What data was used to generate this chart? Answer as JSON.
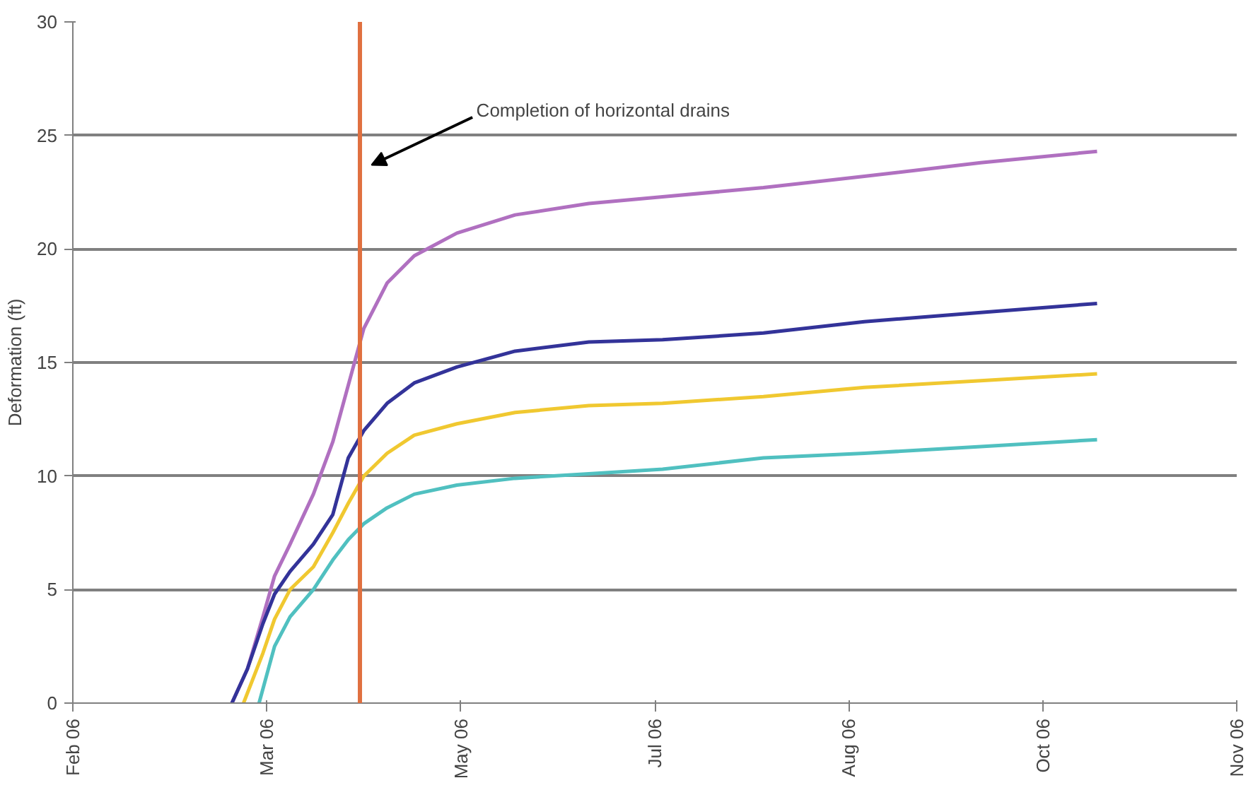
{
  "chart_data": {
    "type": "line",
    "ylabel": "Deformation (ft)",
    "grid": "y",
    "x": [
      "2006-03-14",
      "2006-03-18",
      "2006-03-22",
      "2006-03-25",
      "2006-03-29",
      "2006-04-04",
      "2006-04-09",
      "2006-04-13",
      "2006-04-17",
      "2006-04-23",
      "2006-04-30",
      "2006-05-11",
      "2006-05-26",
      "2006-06-14",
      "2006-07-03",
      "2006-07-29",
      "2006-08-24",
      "2006-09-23",
      "2006-10-23"
    ],
    "series": [
      {
        "color": "#b070c0",
        "values": [
          0,
          1.5,
          3.8,
          5.6,
          7.0,
          9.2,
          11.5,
          14.0,
          16.5,
          18.5,
          19.7,
          20.7,
          21.5,
          22.0,
          22.3,
          22.7,
          23.2,
          23.8,
          24.3
        ]
      },
      {
        "color": "#333399",
        "values": [
          0,
          1.5,
          3.5,
          4.8,
          5.8,
          7.0,
          8.3,
          10.8,
          12.0,
          13.2,
          14.1,
          14.8,
          15.5,
          15.9,
          16.0,
          16.3,
          16.8,
          17.2,
          17.6
        ]
      },
      {
        "color": "#f0c830",
        "x": [
          "2006-03-17",
          "2006-03-22",
          "2006-03-25",
          "2006-03-29",
          "2006-04-04",
          "2006-04-09",
          "2006-04-13",
          "2006-04-17",
          "2006-04-23",
          "2006-04-30",
          "2006-05-11",
          "2006-05-26",
          "2006-06-14",
          "2006-07-03",
          "2006-07-29",
          "2006-08-24",
          "2006-09-23",
          "2006-10-23"
        ],
        "values": [
          0,
          2.2,
          3.7,
          5.0,
          6.0,
          7.5,
          8.8,
          10.0,
          11.0,
          11.8,
          12.3,
          12.8,
          13.1,
          13.2,
          13.5,
          13.9,
          14.2,
          14.5
        ]
      },
      {
        "color": "#50c0c0",
        "x": [
          "2006-03-21",
          "2006-03-25",
          "2006-03-29",
          "2006-04-04",
          "2006-04-09",
          "2006-04-13",
          "2006-04-17",
          "2006-04-23",
          "2006-04-30",
          "2006-05-11",
          "2006-05-26",
          "2006-06-14",
          "2006-07-03",
          "2006-07-29",
          "2006-08-24",
          "2006-09-23",
          "2006-10-23"
        ],
        "values": [
          0,
          2.5,
          3.8,
          5.0,
          6.3,
          7.2,
          7.9,
          8.6,
          9.2,
          9.6,
          9.9,
          10.1,
          10.3,
          10.8,
          11.0,
          11.3,
          11.6
        ]
      }
    ],
    "xlim": [
      "2006-02-01",
      "2006-11-28"
    ],
    "xticks": [
      {
        "value": "2006-02-01",
        "label": "Feb 06"
      },
      {
        "value": "2006-03-23",
        "label": "Mar 06"
      },
      {
        "value": "2006-05-12",
        "label": "May 06"
      },
      {
        "value": "2006-07-01",
        "label": "Jul 06"
      },
      {
        "value": "2006-08-20",
        "label": "Aug 06"
      },
      {
        "value": "2006-10-09",
        "label": "Oct 06"
      },
      {
        "value": "2006-11-28",
        "label": "Nov 06"
      }
    ],
    "ylim": [
      0,
      30
    ],
    "yticks": [
      0,
      5,
      10,
      15,
      20,
      25,
      30
    ],
    "ref_lines": [
      {
        "axis": "x",
        "value": "2006-04-16",
        "label": "Completion of horizontal drains",
        "color": "#e07040",
        "line_style": "solid"
      }
    ]
  }
}
